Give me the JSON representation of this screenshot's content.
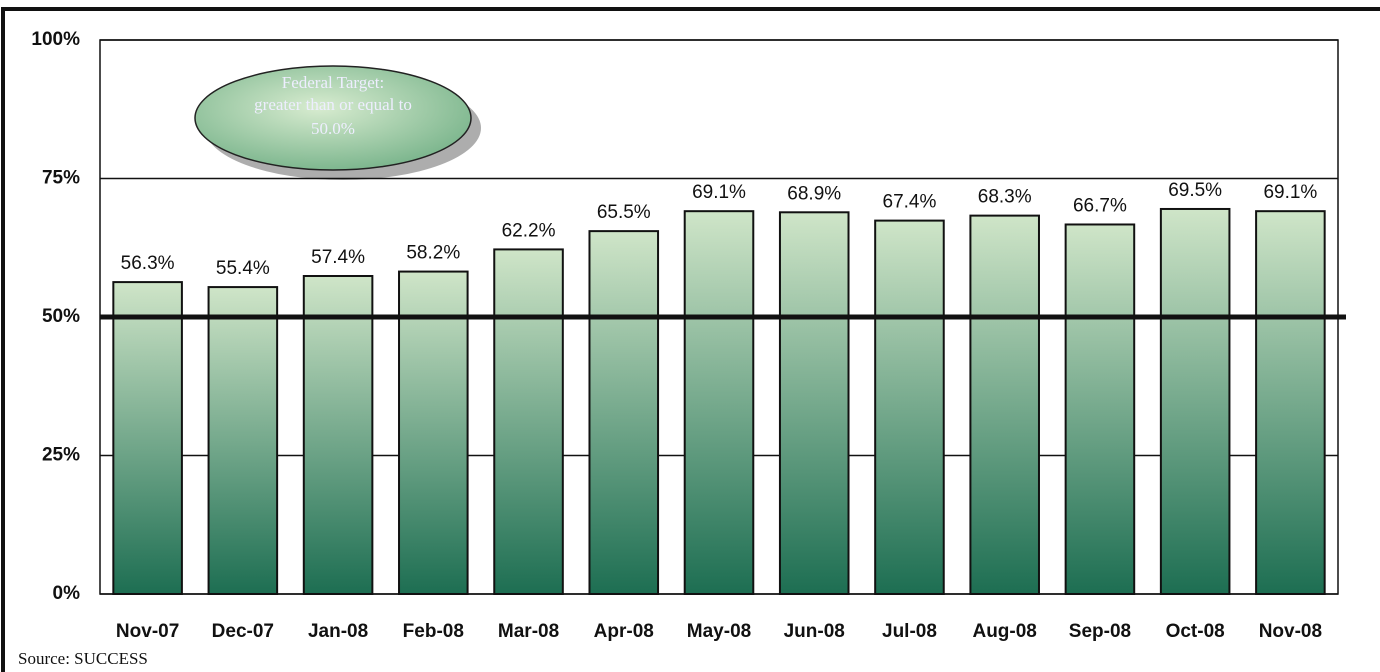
{
  "chart_data": {
    "type": "bar",
    "categories": [
      "Nov-07",
      "Dec-07",
      "Jan-08",
      "Feb-08",
      "Mar-08",
      "Apr-08",
      "May-08",
      "Jun-08",
      "Jul-08",
      "Aug-08",
      "Sep-08",
      "Oct-08",
      "Nov-08"
    ],
    "values": [
      56.3,
      55.4,
      57.4,
      58.2,
      62.2,
      65.5,
      69.1,
      68.9,
      67.4,
      68.3,
      66.7,
      69.5,
      69.1
    ],
    "value_labels": [
      "56.3%",
      "55.4%",
      "57.4%",
      "58.2%",
      "62.2%",
      "65.5%",
      "69.1%",
      "68.9%",
      "67.4%",
      "68.3%",
      "66.7%",
      "69.5%",
      "69.1%"
    ],
    "color": [
      "#cfe5c8",
      "#1d6e52"
    ],
    "ylim": [
      0,
      100
    ],
    "yticks": [
      {
        "value": 0,
        "label": "0%"
      },
      {
        "value": 25,
        "label": "25%"
      },
      {
        "value": 50,
        "label": "50%"
      },
      {
        "value": 75,
        "label": "75%"
      },
      {
        "value": 100,
        "label": "100%"
      }
    ],
    "grid": true,
    "target_line": 50,
    "annotation": {
      "lines": [
        "Federal Target:",
        "greater than or equal to",
        "50.0%"
      ]
    },
    "source": "Source: SUCCESS"
  }
}
